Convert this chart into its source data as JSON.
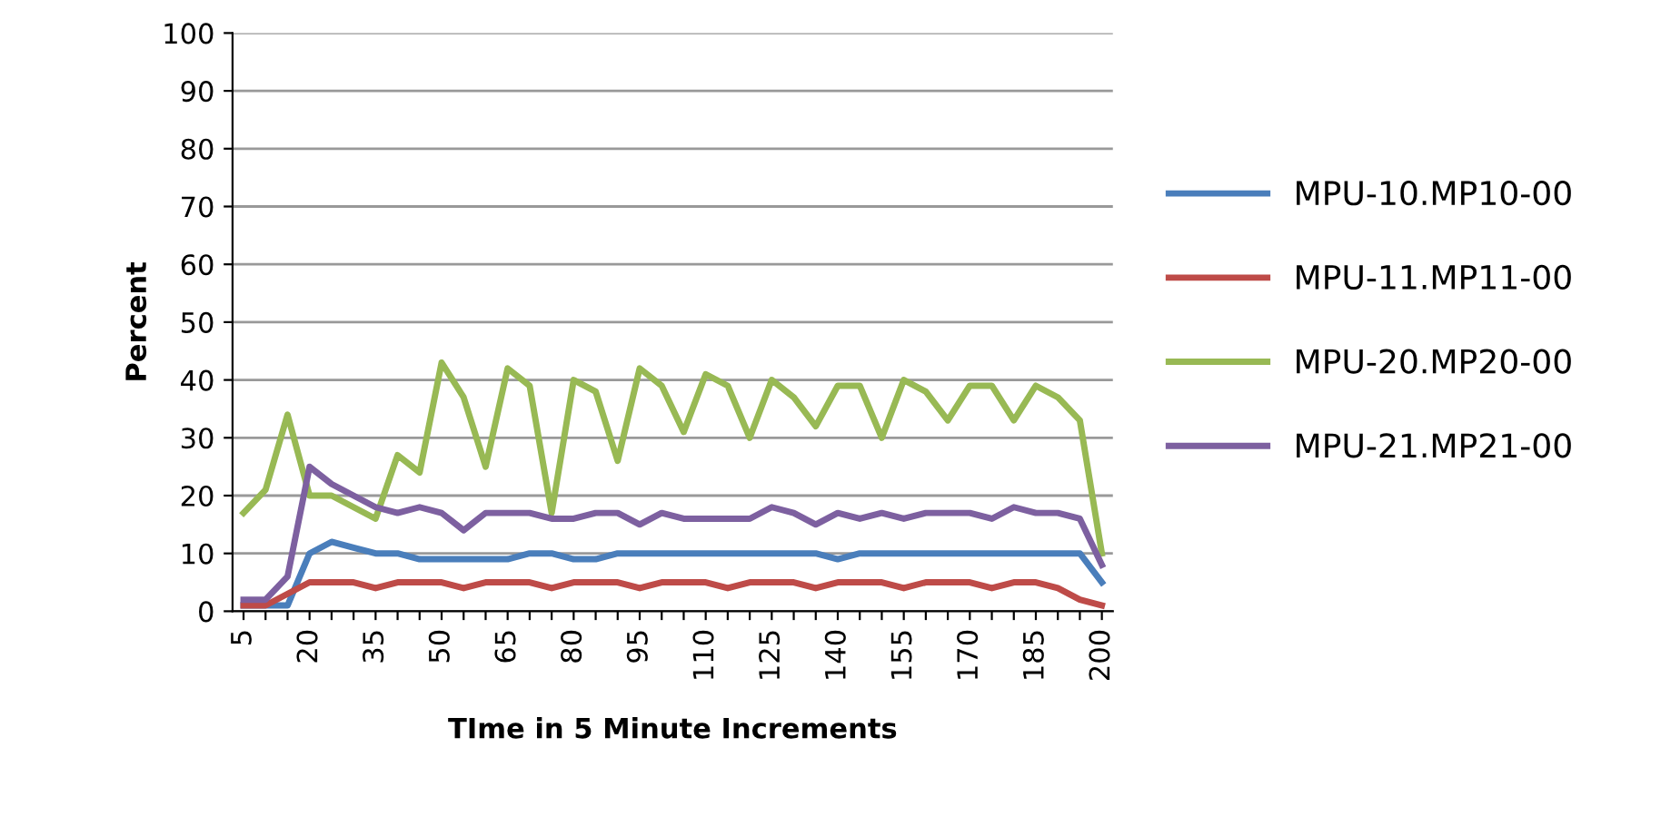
{
  "chart_data": {
    "type": "line",
    "xlabel": "TIme in 5 Minute Increments",
    "ylabel": "Percent",
    "categories": [
      "5",
      null,
      null,
      "20",
      null,
      null,
      "35",
      null,
      null,
      "50",
      null,
      null,
      "65",
      null,
      null,
      "80",
      null,
      null,
      "95",
      null,
      null,
      "110",
      null,
      null,
      "125",
      null,
      null,
      "140",
      null,
      null,
      "155",
      null,
      null,
      "170",
      null,
      null,
      "185",
      null,
      null,
      "200"
    ],
    "series": [
      {
        "name": "MPU-10.MP10-00",
        "color": "#4a7ebb",
        "values": [
          1,
          1,
          1,
          10,
          12,
          11,
          10,
          10,
          9,
          9,
          9,
          9,
          9,
          10,
          10,
          9,
          9,
          10,
          10,
          10,
          10,
          10,
          10,
          10,
          10,
          10,
          10,
          9,
          10,
          10,
          10,
          10,
          10,
          10,
          10,
          10,
          10,
          10,
          10,
          5
        ]
      },
      {
        "name": "MPU-11.MP11-00",
        "color": "#be4b48",
        "values": [
          1,
          1,
          3,
          5,
          5,
          5,
          4,
          5,
          5,
          5,
          4,
          5,
          5,
          5,
          4,
          5,
          5,
          5,
          4,
          5,
          5,
          5,
          4,
          5,
          5,
          5,
          4,
          5,
          5,
          5,
          4,
          5,
          5,
          5,
          4,
          5,
          5,
          4,
          2,
          1
        ]
      },
      {
        "name": "MPU-20.MP20-00",
        "color": "#98b954",
        "values": [
          17,
          21,
          34,
          20,
          20,
          18,
          16,
          27,
          24,
          43,
          37,
          25,
          42,
          39,
          17,
          40,
          38,
          26,
          42,
          39,
          31,
          41,
          39,
          30,
          40,
          37,
          32,
          39,
          39,
          30,
          40,
          38,
          33,
          39,
          39,
          33,
          39,
          37,
          33,
          10
        ]
      },
      {
        "name": "MPU-21.MP21-00",
        "color": "#7d60a0",
        "values": [
          2,
          2,
          6,
          25,
          22,
          20,
          18,
          17,
          18,
          17,
          14,
          17,
          17,
          17,
          16,
          16,
          17,
          17,
          15,
          17,
          16,
          16,
          16,
          16,
          18,
          17,
          15,
          17,
          16,
          17,
          16,
          17,
          17,
          17,
          16,
          18,
          17,
          17,
          16,
          8
        ]
      }
    ],
    "ylim": [
      0,
      100
    ],
    "yticks": [
      0,
      10,
      20,
      30,
      40,
      50,
      60,
      70,
      80,
      90,
      100
    ],
    "grid": "y",
    "legend": "right",
    "marker": "none",
    "line_style": "solid"
  }
}
